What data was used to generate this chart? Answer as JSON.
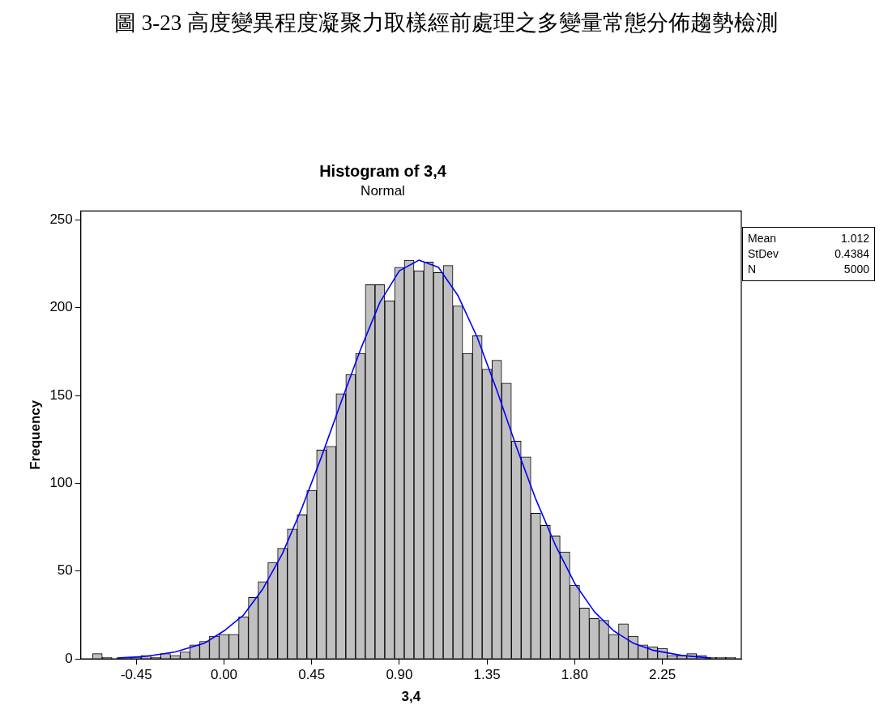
{
  "chart_data": {
    "type": "histogram",
    "title": "Histogram of 3,4",
    "subtitle": "Normal",
    "xlabel": "3,4",
    "ylabel": "Frequency",
    "annotations": [
      "圖 3-23 高度變異程度凝聚力取樣經前處理之多變量常態分佈趨勢檢測",
      "Mean 1.012",
      "StDev 0.4384",
      "N 5000"
    ],
    "bins": [
      -0.675,
      -0.625,
      -0.575,
      -0.525,
      -0.475,
      -0.425,
      -0.375,
      -0.325,
      -0.275,
      -0.225,
      -0.175,
      -0.125,
      -0.075,
      -0.025,
      0.025,
      0.075,
      0.125,
      0.175,
      0.225,
      0.275,
      0.325,
      0.375,
      0.425,
      0.475,
      0.525,
      0.575,
      0.625,
      0.675,
      0.725,
      0.775,
      0.825,
      0.875,
      0.925,
      0.975,
      1.025,
      1.075,
      1.125,
      1.175,
      1.225,
      1.275,
      1.325,
      1.375,
      1.425,
      1.475,
      1.525,
      1.575,
      1.625,
      1.675,
      1.725,
      1.775,
      1.825,
      1.875,
      1.925,
      1.975,
      2.025,
      2.075,
      2.125,
      2.175,
      2.225,
      2.275,
      2.325,
      2.375,
      2.425,
      2.475,
      2.525,
      2.575,
      2.625
    ],
    "values": [
      3,
      1,
      0,
      1,
      1,
      2,
      1,
      3,
      2,
      4,
      8,
      10,
      13,
      14,
      14,
      24,
      35,
      44,
      55,
      63,
      74,
      82,
      96,
      119,
      121,
      151,
      162,
      174,
      213,
      213,
      204,
      223,
      227,
      221,
      226,
      220,
      224,
      201,
      174,
      184,
      165,
      170,
      157,
      124,
      115,
      83,
      76,
      70,
      61,
      42,
      29,
      23,
      22,
      14,
      20,
      13,
      8,
      7,
      6,
      2,
      2,
      3,
      2,
      1,
      1,
      1
    ],
    "color": "#c0c0c0",
    "series": [
      {
        "type": "line",
        "color": "#0000ff",
        "x": [
          -0.55,
          -0.4,
          -0.25,
          -0.1,
          0.0,
          0.1,
          0.2,
          0.3,
          0.4,
          0.5,
          0.6,
          0.7,
          0.8,
          0.9,
          1.0,
          1.1,
          1.2,
          1.3,
          1.4,
          1.5,
          1.6,
          1.7,
          1.8,
          1.9,
          2.0,
          2.1,
          2.2,
          2.35,
          2.5
        ],
        "values": [
          0.5,
          1.5,
          4,
          9,
          16,
          25,
          40,
          60,
          86,
          115,
          146,
          176,
          203,
          221,
          227,
          223,
          207,
          183,
          153,
          121,
          91,
          65,
          43,
          27,
          16,
          9,
          5,
          2,
          0.5
        ]
      }
    ],
    "xlim": [
      -0.735,
      2.655
    ],
    "xticks": [
      -0.45,
      {
        "value": 0,
        "label": "0.00"
      },
      0.45,
      {
        "value": 0.9,
        "label": "0.90"
      },
      1.35,
      {
        "value": 1.8,
        "label": "1.80"
      },
      2.25
    ],
    "ylim": [
      0,
      255
    ],
    "yticks": [
      0,
      50,
      100,
      150,
      200,
      250
    ],
    "grid": false,
    "legend": false
  }
}
